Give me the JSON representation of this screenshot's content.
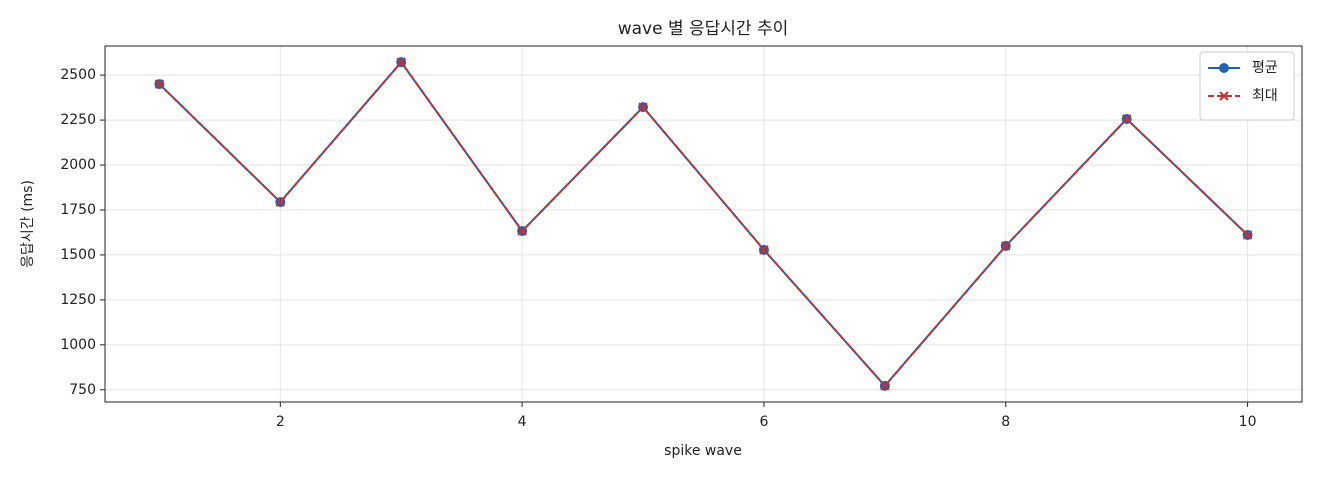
{
  "chart_data": {
    "type": "line",
    "title": "wave 별 응답시간 추이",
    "x_label": "spike wave",
    "y_label": "응답시간 (ms)",
    "x": [
      1,
      2,
      3,
      4,
      5,
      6,
      7,
      8,
      9,
      10
    ],
    "series": [
      {
        "name": "평균",
        "color": "#1f62b8",
        "marker": "o",
        "dash": false,
        "values": [
          2450,
          1794,
          2572,
          1633,
          2322,
          1528,
          772,
          1550,
          2256,
          1611
        ]
      },
      {
        "name": "최대",
        "color": "#c73030",
        "marker": "x",
        "dash": true,
        "values": [
          2450,
          1794,
          2572,
          1633,
          2322,
          1528,
          772,
          1550,
          2256,
          1611
        ]
      }
    ],
    "xlim": [
      0.55,
      10.45
    ],
    "ylim": [
      682,
      2662
    ],
    "xticks": [
      2,
      4,
      6,
      8,
      10
    ],
    "yticks": [
      750,
      1000,
      1250,
      1500,
      1750,
      2000,
      2250,
      2500
    ],
    "grid": true,
    "legend": "upper right"
  }
}
